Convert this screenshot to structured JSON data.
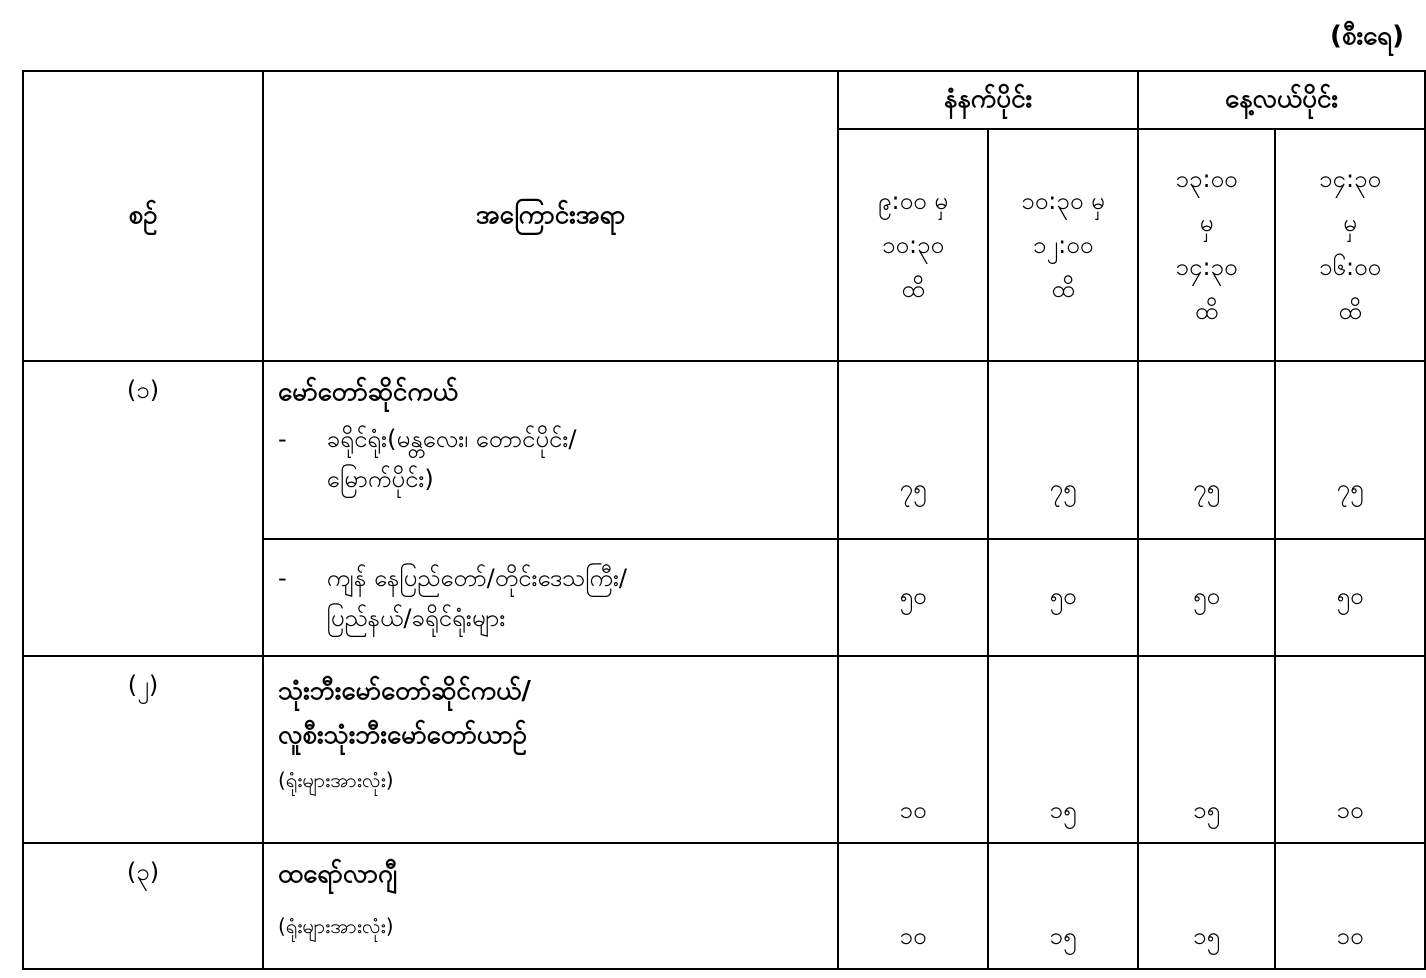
{
  "unit_label": "(စီးရေ)",
  "header": {
    "serial": "စဉ်",
    "subject": "အကြောင်းအရာ",
    "morning": "နံနက်ပိုင်း",
    "afternoon": "နေ့လယ်ပိုင်း",
    "slots": [
      "၉:၀၀ မှ ၁၀:၃၀ ထိ",
      "၁၀:၃၀ မှ ၁၂:၀၀ ထိ",
      "၁၃:၀၀ မှ ၁၄:၃၀ ထိ",
      "၁၄:၃၀ မှ ၁၆:၀၀ ထိ"
    ]
  },
  "rows": [
    {
      "serial": "(၁)",
      "title": "မော်တော်ဆိုင်ကယ်",
      "subitems": [
        {
          "dash": "-",
          "text": "ခရိုင်ရုံး(မန္တလေး၊ တောင်ပိုင်း/ မြောက်ပိုင်း)",
          "values": [
            "၇၅",
            "၇၅",
            "၇၅",
            "၇၅"
          ]
        },
        {
          "dash": "-",
          "text": "ကျန် နေပြည်တော်/တိုင်းဒေသကြီး/ ပြည်နယ်/ခရိုင်ရုံးများ",
          "values": [
            "၅၀",
            "၅၀",
            "၅၀",
            "၅၀"
          ]
        }
      ]
    },
    {
      "serial": "(၂)",
      "title": "သုံးဘီးမော်တော်ဆိုင်ကယ်/ လူစီးသုံးဘီးမော်တော်ယာဉ်",
      "note": "(ရုံးများအားလုံး)",
      "values": [
        "၁၀",
        "၁၅",
        "၁၅",
        "၁၀"
      ]
    },
    {
      "serial": "(၃)",
      "title": "ထရော်လာဂျီ",
      "note": "(ရုံးများအားလုံး)",
      "values": [
        "၁၀",
        "၁၅",
        "၁၅",
        "၁၀"
      ]
    }
  ]
}
